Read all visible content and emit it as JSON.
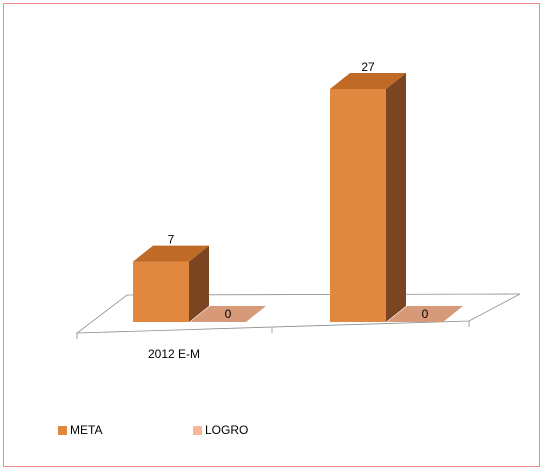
{
  "chart_data": {
    "type": "bar",
    "style": "3d-column",
    "categories": [
      "2012 E-M",
      ""
    ],
    "series": [
      {
        "name": "META",
        "values": [
          7,
          27
        ],
        "color": "#e08840",
        "side_color": "#7a4520",
        "top_color": "#c06a28"
      },
      {
        "name": "LOGRO",
        "values": [
          0,
          0
        ],
        "color": "#f7b797",
        "side_color": "#c08060",
        "top_color": "#d79a78"
      }
    ],
    "data_labels": [
      "7",
      "27",
      "0",
      "0"
    ],
    "legend": [
      "META",
      "LOGRO"
    ],
    "legend_position": "bottom-left",
    "grid": false,
    "title": "",
    "xlabel": "",
    "ylabel": ""
  }
}
